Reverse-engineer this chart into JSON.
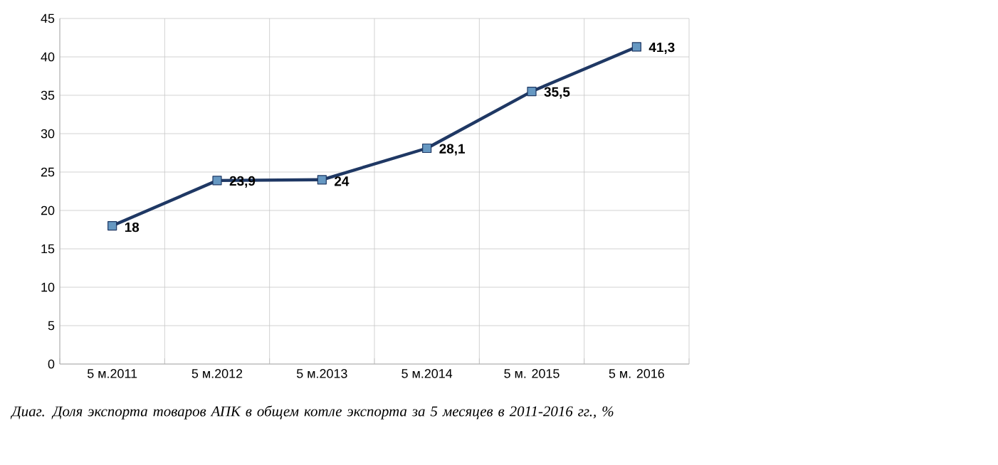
{
  "chart_data": {
    "type": "line",
    "categories": [
      "5 м.2011",
      "5 м.2012",
      "5 м.2013",
      "5 м.2014",
      "5 м. 2015",
      "5 м. 2016"
    ],
    "series": [
      {
        "color": "#1f3864",
        "values": [
          18,
          23.9,
          24,
          28.1,
          35.5,
          41.3
        ],
        "value_labels": [
          "18",
          "23,9",
          "24",
          "28,1",
          "35,5",
          "41,3"
        ]
      }
    ],
    "ylim": [
      0,
      45
    ],
    "yticks": [
      0,
      5,
      10,
      15,
      20,
      25,
      30,
      35,
      40,
      45
    ],
    "grid": true,
    "marker": "square",
    "line_style": "solid",
    "annotations": [
      "*Диаг. Доля экспорта товаров АПК в общем котле экспорта за 5 месяцев в 2011-2016 гг., %*"
    ]
  }
}
